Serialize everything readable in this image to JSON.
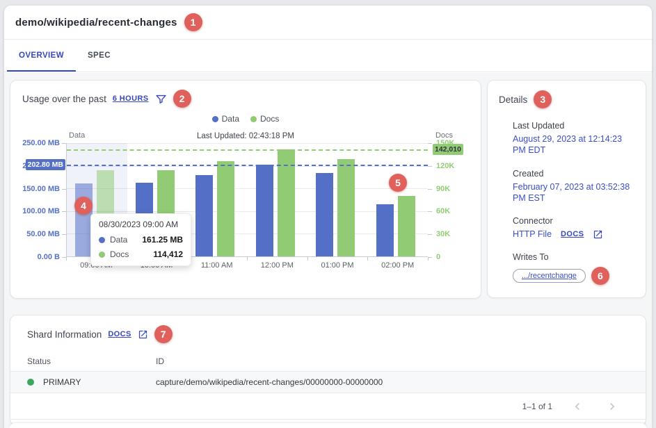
{
  "page_title": "demo/wikipedia/recent-changes",
  "badges": [
    "1",
    "2",
    "3",
    "4",
    "5",
    "6",
    "7"
  ],
  "tabs": [
    {
      "label": "OVERVIEW",
      "active": true
    },
    {
      "label": "SPEC",
      "active": false
    }
  ],
  "usage_card": {
    "title": "Usage over the past",
    "range_link": "6 HOURS",
    "last_updated": "Last Updated: 02:43:18 PM"
  },
  "chart_data": {
    "type": "bar",
    "categories": [
      "09:00 AM",
      "10:00 AM",
      "11:00 AM",
      "12:00 PM",
      "01:00 PM",
      "02:00 PM"
    ],
    "series": [
      {
        "name": "Data",
        "axis": "left",
        "unit": "MB",
        "color": "#5470c6",
        "max": 250,
        "values": [
          161.25,
          162,
          179,
          202.8,
          183.5,
          115.5
        ]
      },
      {
        "name": "Docs",
        "axis": "right",
        "color": "#91cc75",
        "max": 150000,
        "values": [
          114412,
          114500,
          125700,
          142010,
          129100,
          80300
        ]
      }
    ],
    "left_axis": {
      "title": "Data",
      "max": 250,
      "ticks": [
        "250.00 MB",
        "200.00 MB",
        "150.00 MB",
        "100.00 MB",
        "50.00 MB",
        "0.00 B"
      ],
      "marker": {
        "label": "202.80 MB",
        "value": 202.8
      }
    },
    "right_axis": {
      "title": "Docs",
      "max": 150000,
      "ticks": [
        "150K",
        "120K",
        "90K",
        "60K",
        "30K",
        "0"
      ],
      "marker": {
        "label": "142,010",
        "value": 142010
      }
    },
    "highlight_index": 0,
    "grid": true,
    "legend_position": "top",
    "tooltip": {
      "title": "08/30/2023 09:00 AM",
      "rows": [
        {
          "series": "Data",
          "value": "161.25 MB"
        },
        {
          "series": "Docs",
          "value": "114,412"
        }
      ]
    }
  },
  "details_card": {
    "title": "Details",
    "last_updated_label": "Last Updated",
    "last_updated_value": "August 29, 2023 at 12:14:23 PM EDT",
    "created_label": "Created",
    "created_value": "February 07, 2023 at 03:52:38 PM EST",
    "connector_label": "Connector",
    "connector_value": "HTTP File",
    "connector_docs_link": "DOCS",
    "writes_to_label": "Writes To",
    "writes_to_value": ".../recentchange"
  },
  "shard_card": {
    "title": "Shard Information",
    "docs_link": "DOCS",
    "columns": [
      "Status",
      "ID"
    ],
    "rows": [
      {
        "status": "PRIMARY",
        "status_color": "#3aa75c",
        "id": "capture/demo/wikipedia/recent-changes/00000000-00000000"
      }
    ],
    "pagination": "1–1 of 1"
  }
}
